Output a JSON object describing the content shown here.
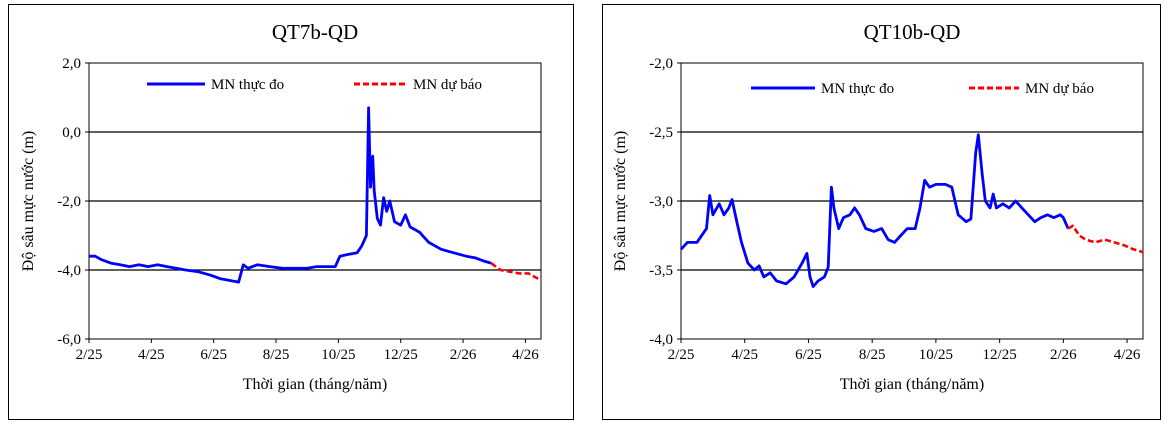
{
  "chart_data": [
    {
      "type": "line",
      "title": "QT7b-QD",
      "xlabel": "Thời gian (tháng/năm)",
      "ylabel": "Độ sâu mực nước (m)",
      "x_ticks": [
        "2/25",
        "4/25",
        "6/25",
        "8/25",
        "10/25",
        "12/25",
        "2/26",
        "4/26"
      ],
      "y_ticks": [
        "2,0",
        "0,0",
        "-2,0",
        "-4,0",
        "-6,0"
      ],
      "ylim": [
        -6,
        2
      ],
      "x_range_months": [
        0,
        14.5
      ],
      "grid": "horizontal",
      "legend_position": "top",
      "series": [
        {
          "name": "MN thực đo",
          "color": "#0000ff",
          "style": "solid",
          "points": [
            [
              0,
              -3.6
            ],
            [
              0.2,
              -3.6
            ],
            [
              0.4,
              -3.7
            ],
            [
              0.7,
              -3.8
            ],
            [
              1.0,
              -3.85
            ],
            [
              1.3,
              -3.9
            ],
            [
              1.6,
              -3.85
            ],
            [
              1.9,
              -3.9
            ],
            [
              2.2,
              -3.85
            ],
            [
              2.5,
              -3.9
            ],
            [
              2.8,
              -3.95
            ],
            [
              3.1,
              -4.0
            ],
            [
              3.5,
              -4.05
            ],
            [
              3.9,
              -4.15
            ],
            [
              4.2,
              -4.25
            ],
            [
              4.5,
              -4.3
            ],
            [
              4.8,
              -4.35
            ],
            [
              4.95,
              -3.85
            ],
            [
              5.1,
              -3.95
            ],
            [
              5.4,
              -3.85
            ],
            [
              5.8,
              -3.9
            ],
            [
              6.2,
              -3.95
            ],
            [
              6.6,
              -3.95
            ],
            [
              7.0,
              -3.95
            ],
            [
              7.3,
              -3.9
            ],
            [
              7.6,
              -3.9
            ],
            [
              7.9,
              -3.9
            ],
            [
              8.05,
              -3.6
            ],
            [
              8.3,
              -3.55
            ],
            [
              8.6,
              -3.5
            ],
            [
              8.75,
              -3.3
            ],
            [
              8.9,
              -3.0
            ],
            [
              8.97,
              0.7
            ],
            [
              9.03,
              -1.6
            ],
            [
              9.1,
              -0.7
            ],
            [
              9.15,
              -1.7
            ],
            [
              9.25,
              -2.5
            ],
            [
              9.35,
              -2.7
            ],
            [
              9.45,
              -1.9
            ],
            [
              9.55,
              -2.3
            ],
            [
              9.65,
              -2.0
            ],
            [
              9.8,
              -2.6
            ],
            [
              10.0,
              -2.7
            ],
            [
              10.15,
              -2.4
            ],
            [
              10.3,
              -2.75
            ],
            [
              10.6,
              -2.9
            ],
            [
              10.9,
              -3.2
            ],
            [
              11.3,
              -3.4
            ],
            [
              11.7,
              -3.5
            ],
            [
              12.1,
              -3.6
            ],
            [
              12.4,
              -3.65
            ],
            [
              12.7,
              -3.75
            ],
            [
              12.9,
              -3.8
            ]
          ]
        },
        {
          "name": "MN dự báo",
          "color": "#ff0000",
          "style": "dashed",
          "points": [
            [
              12.9,
              -3.8
            ],
            [
              13.2,
              -4.0
            ],
            [
              13.5,
              -4.05
            ],
            [
              13.8,
              -4.1
            ],
            [
              14.1,
              -4.1
            ],
            [
              14.5,
              -4.3
            ]
          ]
        }
      ]
    },
    {
      "type": "line",
      "title": "QT10b-QD",
      "xlabel": "Thời gian (tháng/năm)",
      "ylabel": "Độ sâu mực nước (m)",
      "x_ticks": [
        "2/25",
        "4/25",
        "6/25",
        "8/25",
        "10/25",
        "12/25",
        "2/26",
        "4/26"
      ],
      "y_ticks": [
        "-2,0",
        "-2,5",
        "-3,0",
        "-3,5",
        "-4,0"
      ],
      "ylim": [
        -4,
        -2
      ],
      "x_range_months": [
        0,
        14.5
      ],
      "grid": "horizontal",
      "legend_position": "top",
      "series": [
        {
          "name": "MN thực đo",
          "color": "#0000ff",
          "style": "solid",
          "points": [
            [
              0,
              -3.35
            ],
            [
              0.2,
              -3.3
            ],
            [
              0.5,
              -3.3
            ],
            [
              0.8,
              -3.2
            ],
            [
              0.9,
              -2.96
            ],
            [
              1.0,
              -3.1
            ],
            [
              1.2,
              -3.02
            ],
            [
              1.35,
              -3.1
            ],
            [
              1.5,
              -3.05
            ],
            [
              1.6,
              -2.99
            ],
            [
              1.75,
              -3.15
            ],
            [
              1.9,
              -3.3
            ],
            [
              2.1,
              -3.45
            ],
            [
              2.3,
              -3.5
            ],
            [
              2.45,
              -3.47
            ],
            [
              2.6,
              -3.55
            ],
            [
              2.8,
              -3.52
            ],
            [
              3.0,
              -3.58
            ],
            [
              3.3,
              -3.6
            ],
            [
              3.55,
              -3.55
            ],
            [
              3.8,
              -3.45
            ],
            [
              3.95,
              -3.38
            ],
            [
              4.05,
              -3.55
            ],
            [
              4.15,
              -3.62
            ],
            [
              4.3,
              -3.58
            ],
            [
              4.5,
              -3.55
            ],
            [
              4.62,
              -3.48
            ],
            [
              4.72,
              -2.9
            ],
            [
              4.8,
              -3.05
            ],
            [
              4.95,
              -3.2
            ],
            [
              5.1,
              -3.12
            ],
            [
              5.3,
              -3.1
            ],
            [
              5.45,
              -3.05
            ],
            [
              5.6,
              -3.1
            ],
            [
              5.8,
              -3.2
            ],
            [
              6.05,
              -3.22
            ],
            [
              6.3,
              -3.2
            ],
            [
              6.5,
              -3.28
            ],
            [
              6.7,
              -3.3
            ],
            [
              6.9,
              -3.25
            ],
            [
              7.1,
              -3.2
            ],
            [
              7.35,
              -3.2
            ],
            [
              7.5,
              -3.05
            ],
            [
              7.65,
              -2.85
            ],
            [
              7.8,
              -2.9
            ],
            [
              8.0,
              -2.88
            ],
            [
              8.3,
              -2.88
            ],
            [
              8.5,
              -2.9
            ],
            [
              8.7,
              -3.1
            ],
            [
              8.95,
              -3.15
            ],
            [
              9.1,
              -3.13
            ],
            [
              9.25,
              -2.65
            ],
            [
              9.33,
              -2.52
            ],
            [
              9.45,
              -2.8
            ],
            [
              9.55,
              -3.0
            ],
            [
              9.7,
              -3.05
            ],
            [
              9.8,
              -2.95
            ],
            [
              9.9,
              -3.05
            ],
            [
              10.1,
              -3.02
            ],
            [
              10.3,
              -3.05
            ],
            [
              10.5,
              -3.0
            ],
            [
              10.7,
              -3.05
            ],
            [
              10.9,
              -3.1
            ],
            [
              11.1,
              -3.15
            ],
            [
              11.3,
              -3.12
            ],
            [
              11.5,
              -3.1
            ],
            [
              11.7,
              -3.12
            ],
            [
              11.9,
              -3.1
            ],
            [
              12.0,
              -3.12
            ],
            [
              12.15,
              -3.2
            ]
          ]
        },
        {
          "name": "MN dự báo",
          "color": "#ff0000",
          "style": "dashed",
          "points": [
            [
              12.15,
              -3.2
            ],
            [
              12.3,
              -3.18
            ],
            [
              12.5,
              -3.25
            ],
            [
              12.7,
              -3.28
            ],
            [
              13.0,
              -3.3
            ],
            [
              13.3,
              -3.28
            ],
            [
              13.6,
              -3.3
            ],
            [
              13.9,
              -3.32
            ],
            [
              14.2,
              -3.35
            ],
            [
              14.5,
              -3.37
            ]
          ]
        }
      ]
    }
  ]
}
